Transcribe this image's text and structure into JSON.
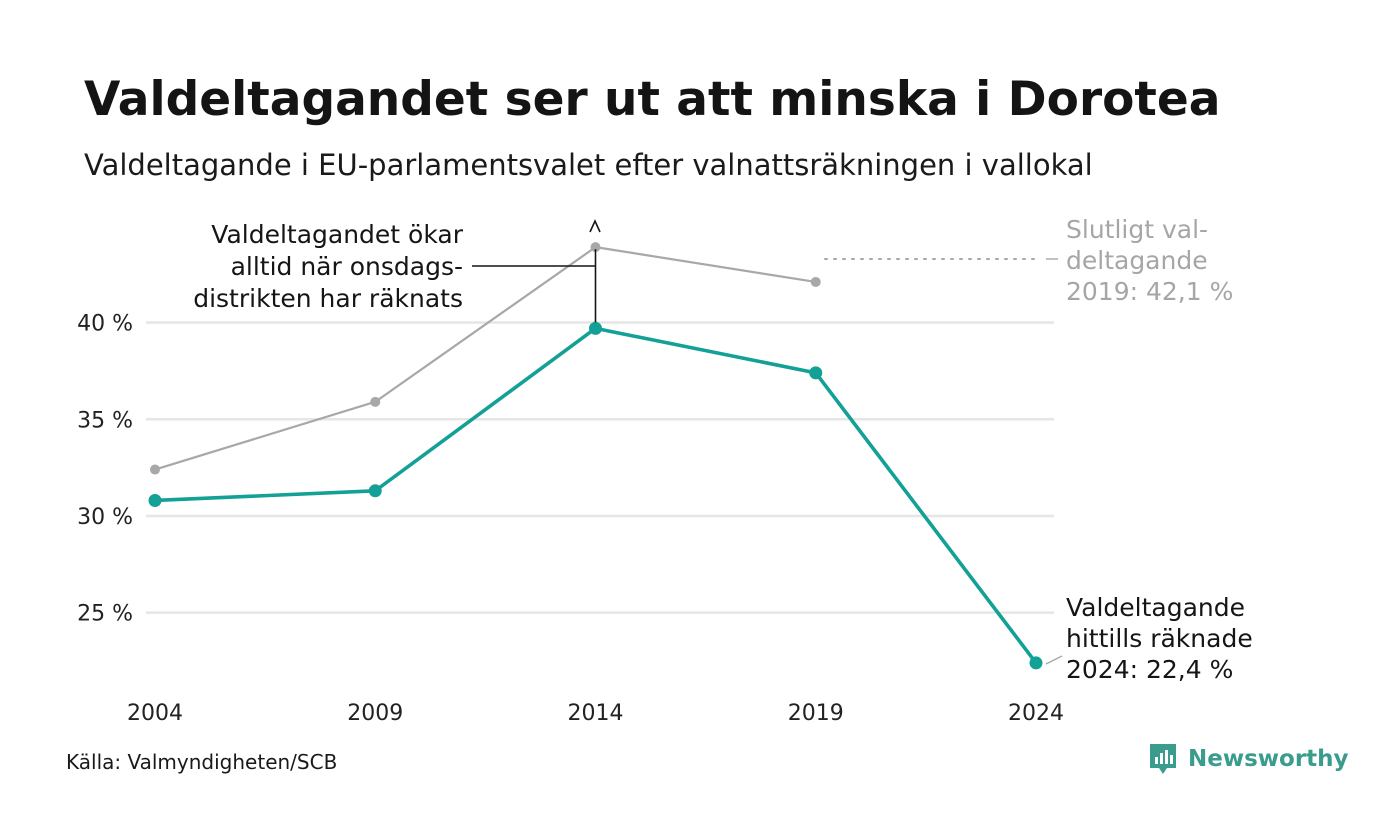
{
  "title": "Valdeltagandet ser ut att minska i Dorotea",
  "subtitle": "Valdeltagande i EU-parlamentsvalet efter valnattsräkningen i vallokal",
  "source": "Källa: Valmyndigheten/SCB",
  "brand": "Newsworthy",
  "colors": {
    "counted_line": "#13a096",
    "final_line": "#a8a8a8",
    "grid": "#e6e6e6",
    "annotation_dark": "#151515",
    "annotation_grey": "#a6a6a6",
    "brand": "#3a9c8c"
  },
  "annotations": {
    "increase": [
      "Valdeltagandet ökar",
      "alltid när onsdags-",
      "distrikten har räknats"
    ],
    "final": [
      "Slutligt val-",
      "deltagande",
      "2019: 42,1 %"
    ],
    "counted": [
      "Valdeltagande",
      "hittills räknade",
      "2024: 22,4 %"
    ]
  },
  "chart_data": {
    "type": "line",
    "title": "Valdeltagandet ser ut att minska i Dorotea",
    "subtitle": "Valdeltagande i EU-parlamentsvalet efter valnattsräkningen i vallokal",
    "x": [
      2004,
      2009,
      2014,
      2019,
      2024
    ],
    "x_tick_labels": [
      "2004",
      "2009",
      "2014",
      "2019",
      "2024"
    ],
    "y_ticks": [
      25,
      30,
      35,
      40
    ],
    "y_tick_labels": [
      "25 %",
      "30 %",
      "35 %",
      "40 %"
    ],
    "ylim": [
      21,
      45.2
    ],
    "grid": true,
    "series": [
      {
        "key": "final",
        "values": [
          32.4,
          35.9,
          43.9,
          42.1,
          null
        ],
        "color": "#a8a8a8"
      },
      {
        "key": "counted",
        "values": [
          30.8,
          31.3,
          39.7,
          37.4,
          22.4
        ],
        "color": "#13a096"
      }
    ]
  }
}
